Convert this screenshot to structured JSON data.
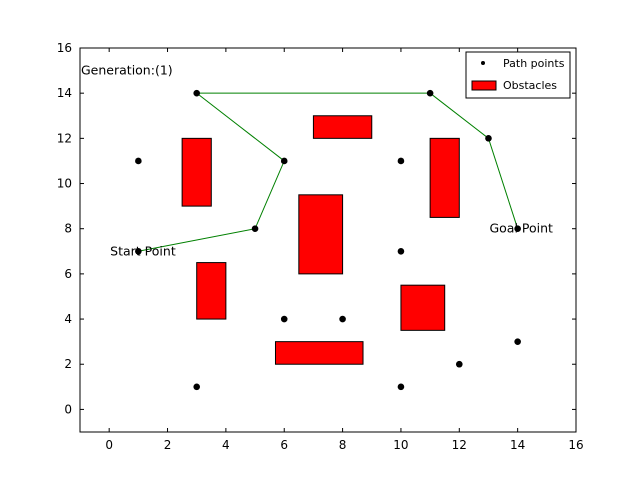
{
  "chart_data": {
    "type": "scatter",
    "title": "",
    "xlabel": "",
    "ylabel": "",
    "xlim": [
      -1,
      16
    ],
    "ylim": [
      -1,
      16
    ],
    "xticks": [
      0,
      2,
      4,
      6,
      8,
      10,
      12,
      14,
      16
    ],
    "yticks": [
      0,
      2,
      4,
      6,
      8,
      10,
      12,
      14,
      16
    ],
    "grid": false,
    "legend_position": "top-right",
    "legend": [
      {
        "label": "Path points",
        "marker": "point",
        "color": "#000000"
      },
      {
        "label": "Obstacles",
        "marker": "rect",
        "color": "#ff0000"
      }
    ],
    "path_points": [
      {
        "x": 1,
        "y": 11
      },
      {
        "x": 1,
        "y": 7
      },
      {
        "x": 3,
        "y": 14
      },
      {
        "x": 3,
        "y": 1
      },
      {
        "x": 5,
        "y": 8
      },
      {
        "x": 6,
        "y": 11
      },
      {
        "x": 6,
        "y": 4
      },
      {
        "x": 8,
        "y": 4
      },
      {
        "x": 10,
        "y": 11
      },
      {
        "x": 10,
        "y": 7
      },
      {
        "x": 10,
        "y": 1
      },
      {
        "x": 11,
        "y": 14
      },
      {
        "x": 12,
        "y": 2
      },
      {
        "x": 13,
        "y": 12
      },
      {
        "x": 14,
        "y": 8
      },
      {
        "x": 14,
        "y": 3
      }
    ],
    "route": [
      {
        "x": 1,
        "y": 7
      },
      {
        "x": 5,
        "y": 8
      },
      {
        "x": 6,
        "y": 11
      },
      {
        "x": 3,
        "y": 14
      },
      {
        "x": 11,
        "y": 14
      },
      {
        "x": 13,
        "y": 12
      },
      {
        "x": 14,
        "y": 8
      }
    ],
    "route_color": "#008000",
    "obstacle_color": "#ff0000",
    "obstacles": [
      {
        "x0": 2.5,
        "x1": 3.5,
        "y0": 9,
        "y1": 12
      },
      {
        "x0": 3,
        "x1": 4,
        "y0": 4,
        "y1": 6.5
      },
      {
        "x0": 7,
        "x1": 9,
        "y0": 12,
        "y1": 13
      },
      {
        "x0": 6.5,
        "x1": 8,
        "y0": 6,
        "y1": 9.5
      },
      {
        "x0": 5.7,
        "x1": 8.7,
        "y0": 2,
        "y1": 3
      },
      {
        "x0": 11,
        "x1": 12,
        "y0": 8.5,
        "y1": 12
      },
      {
        "x0": 10,
        "x1": 11.5,
        "y0": 3.5,
        "y1": 5.5
      }
    ],
    "annotations": [
      {
        "text": "Generation:(1)",
        "x": -1,
        "y": 15
      },
      {
        "text": "Start Point",
        "x": 0,
        "y": 7
      },
      {
        "text": "Goal Point",
        "x": 13,
        "y": 8
      }
    ]
  }
}
